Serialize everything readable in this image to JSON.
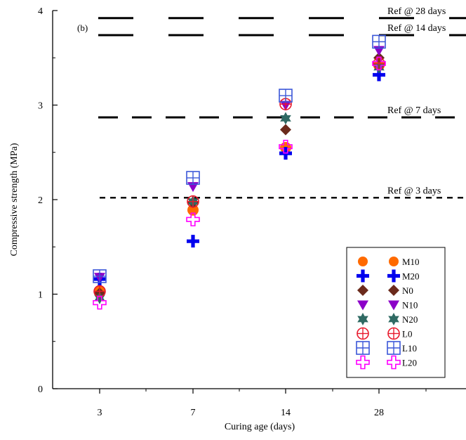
{
  "panel_label": "(b)",
  "chart_data": {
    "type": "scatter",
    "xlabel": "Curing age (days)",
    "ylabel": "Compressive strength (MPa)",
    "categories": [
      "3",
      "7",
      "14",
      "28"
    ],
    "yticks": [
      "0",
      "1",
      "2",
      "3",
      "4"
    ],
    "ylim": [
      0,
      4
    ],
    "grid": false,
    "legend_position": "bottom-right",
    "reference_lines": [
      {
        "label": "Ref @ 28 days",
        "value": 3.92,
        "dash": "long"
      },
      {
        "label": "Ref @ 14 days",
        "value": 3.74,
        "dash": "long"
      },
      {
        "label": "Ref @ 7 days",
        "value": 2.87,
        "dash": "medium"
      },
      {
        "label": "Ref @ 3 days",
        "value": 2.02,
        "dash": "short"
      }
    ],
    "series": [
      {
        "name": "M10",
        "marker": "circle-filled",
        "color": "#ff6a00",
        "values": [
          1.03,
          1.89,
          2.55,
          3.42
        ]
      },
      {
        "name": "M20",
        "marker": "cross-filled",
        "color": "#0000ee",
        "values": [
          1.16,
          1.56,
          2.49,
          3.32
        ]
      },
      {
        "name": "N0",
        "marker": "diamond",
        "color": "#6b2a1c",
        "values": [
          1.01,
          1.97,
          2.74,
          3.5
        ]
      },
      {
        "name": "N10",
        "marker": "triangle-down",
        "color": "#8c00c8",
        "values": [
          1.18,
          2.14,
          3.0,
          3.58
        ]
      },
      {
        "name": "N20",
        "marker": "star6",
        "color": "#2f6a63",
        "values": [
          0.96,
          1.98,
          2.86,
          3.4
        ]
      },
      {
        "name": "L0",
        "marker": "circle-plus",
        "color": "#e8192c",
        "values": [
          1.03,
          1.98,
          3.01,
          3.44
        ]
      },
      {
        "name": "L10",
        "marker": "square-grid",
        "color": "#3b57d8",
        "values": [
          1.19,
          2.23,
          3.1,
          3.67
        ]
      },
      {
        "name": "L20",
        "marker": "cross-open",
        "color": "#ff00ff",
        "values": [
          0.91,
          1.79,
          2.56,
          3.44
        ]
      }
    ]
  }
}
